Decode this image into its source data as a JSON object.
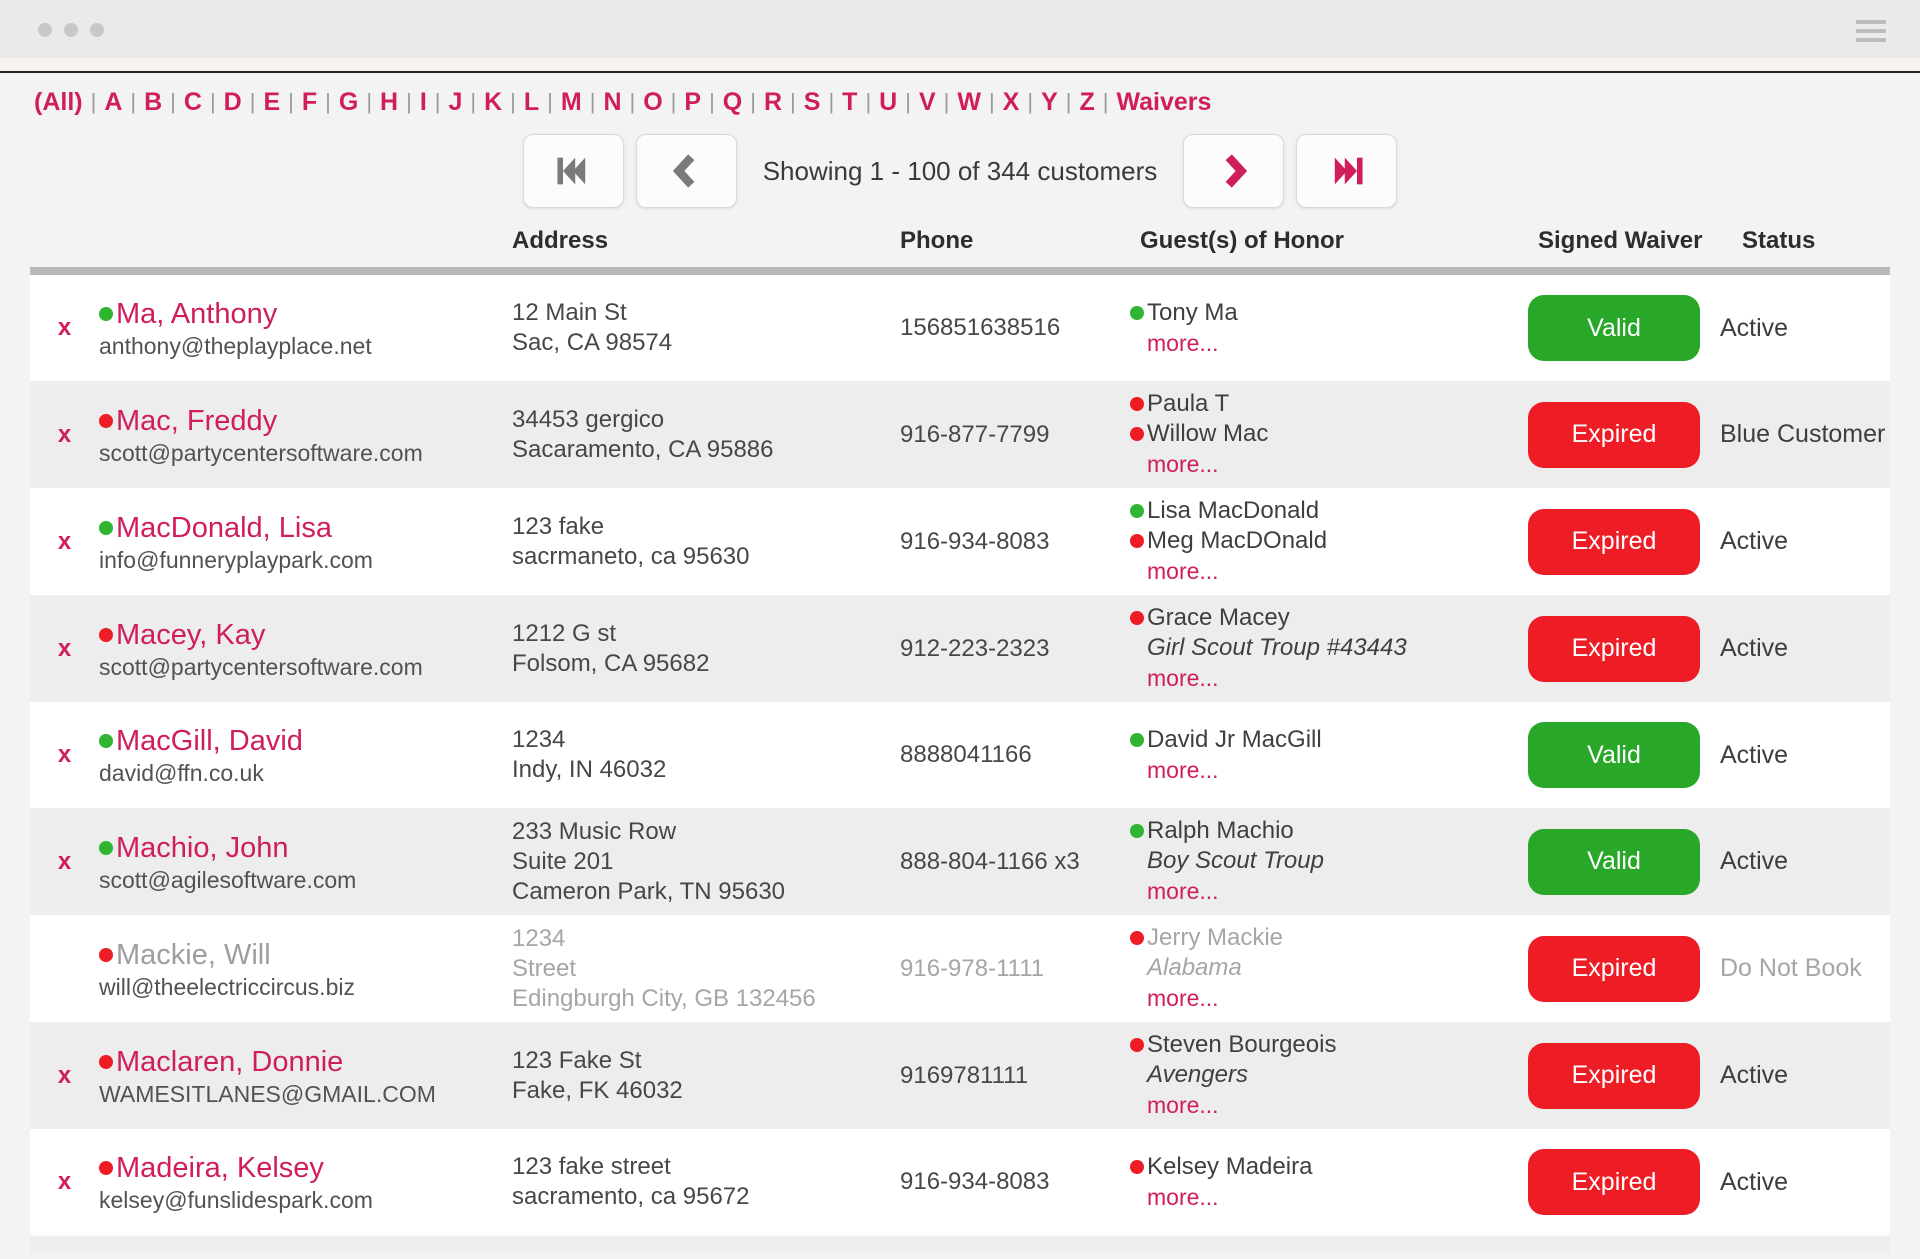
{
  "alphabet_nav": {
    "items": [
      "(All)",
      "A",
      "B",
      "C",
      "D",
      "E",
      "F",
      "G",
      "H",
      "I",
      "J",
      "K",
      "L",
      "M",
      "N",
      "O",
      "P",
      "Q",
      "R",
      "S",
      "T",
      "U",
      "V",
      "W",
      "X",
      "Y",
      "Z",
      "Waivers"
    ]
  },
  "pagination": {
    "summary": "Showing 1 - 100 of 344 customers"
  },
  "table": {
    "headers": {
      "address": "Address",
      "phone": "Phone",
      "guests": "Guest(s) of Honor",
      "waiver": "Signed Waiver",
      "status": "Status"
    },
    "delete_label": "x",
    "more_label": "more...",
    "rows": [
      {
        "name": "Ma, Anthony",
        "dot": "green",
        "email": "anthony@theplayplace.net",
        "address": [
          "12 Main St",
          "Sac, CA 98574"
        ],
        "phone": "156851638516",
        "guests": [
          {
            "name": "Tony Ma",
            "dot": "green"
          }
        ],
        "more": true,
        "waiver": {
          "label": "Valid",
          "color": "green"
        },
        "status": "Active",
        "muted": false,
        "deletable": true
      },
      {
        "name": "Mac, Freddy",
        "dot": "red",
        "email": "scott@partycentersoftware.com",
        "address": [
          "34453 gergico",
          "Sacaramento, CA 95886"
        ],
        "phone": "916-877-7799",
        "guests": [
          {
            "name": "Paula T",
            "dot": "red"
          },
          {
            "name": "Willow Mac",
            "dot": "red"
          }
        ],
        "more": true,
        "waiver": {
          "label": "Expired",
          "color": "red"
        },
        "status": "Blue Customer",
        "muted": false,
        "deletable": true
      },
      {
        "name": "MacDonald, Lisa",
        "dot": "green",
        "email": "info@funneryplaypark.com",
        "address": [
          "123 fake",
          "sacrmaneto, ca 95630"
        ],
        "phone": "916-934-8083",
        "guests": [
          {
            "name": "Lisa MacDonald",
            "dot": "green"
          },
          {
            "name": "Meg MacDOnald",
            "dot": "red"
          }
        ],
        "more": true,
        "waiver": {
          "label": "Expired",
          "color": "red"
        },
        "status": "Active",
        "muted": false,
        "deletable": true
      },
      {
        "name": "Macey, Kay",
        "dot": "red",
        "email": "scott@partycentersoftware.com",
        "address": [
          "1212 G st",
          "Folsom, CA 95682"
        ],
        "phone": "912-223-2323",
        "guests": [
          {
            "name": "Grace Macey",
            "dot": "red"
          },
          {
            "name": "Girl Scout Troup #43443",
            "italic": true
          }
        ],
        "more": true,
        "waiver": {
          "label": "Expired",
          "color": "red"
        },
        "status": "Active",
        "muted": false,
        "deletable": true
      },
      {
        "name": "MacGill, David",
        "dot": "green",
        "email": "david@ffn.co.uk",
        "address": [
          "1234",
          "Indy, IN 46032"
        ],
        "phone": "8888041166",
        "guests": [
          {
            "name": "David Jr MacGill",
            "dot": "green"
          }
        ],
        "more": true,
        "waiver": {
          "label": "Valid",
          "color": "green"
        },
        "status": "Active",
        "muted": false,
        "deletable": true
      },
      {
        "name": "Machio, John",
        "dot": "green",
        "email": "scott@agilesoftware.com",
        "address": [
          "233 Music Row",
          "Suite 201",
          "Cameron Park, TN 95630"
        ],
        "phone": "888-804-1166 x3",
        "guests": [
          {
            "name": "Ralph Machio",
            "dot": "green"
          },
          {
            "name": "Boy Scout Troup",
            "italic": true
          }
        ],
        "more": true,
        "waiver": {
          "label": "Valid",
          "color": "green"
        },
        "status": "Active",
        "muted": false,
        "deletable": true
      },
      {
        "name": "Mackie, Will",
        "dot": "red",
        "email": "will@theelectriccircus.biz",
        "address": [
          "1234",
          "Street",
          "Edingburgh City, GB 132456"
        ],
        "phone": "916-978-1111",
        "guests": [
          {
            "name": "Jerry Mackie",
            "dot": "red"
          },
          {
            "name": "Alabama",
            "italic": true
          }
        ],
        "more": true,
        "waiver": {
          "label": "Expired",
          "color": "red"
        },
        "status": "Do Not Book",
        "muted": true,
        "deletable": false
      },
      {
        "name": "Maclaren, Donnie",
        "dot": "red",
        "email": "WAMESITLANES@GMAIL.COM",
        "address": [
          "123 Fake St",
          "Fake, FK 46032"
        ],
        "phone": "9169781111",
        "guests": [
          {
            "name": "Steven Bourgeois",
            "dot": "red"
          },
          {
            "name": "Avengers",
            "italic": true
          }
        ],
        "more": true,
        "waiver": {
          "label": "Expired",
          "color": "red"
        },
        "status": "Active",
        "muted": false,
        "deletable": true
      },
      {
        "name": "Madeira, Kelsey",
        "dot": "red",
        "email": "kelsey@funslidespark.com",
        "address": [
          "123 fake street",
          "sacramento, ca 95672"
        ],
        "phone": "916-934-8083",
        "guests": [
          {
            "name": "Kelsey Madeira",
            "dot": "red"
          }
        ],
        "more": true,
        "waiver": {
          "label": "Expired",
          "color": "red"
        },
        "status": "Active",
        "muted": false,
        "deletable": true
      }
    ]
  },
  "colors": {
    "brand_pink": "#d01d5c",
    "valid_green": "#28a728",
    "expired_red": "#ee1c25",
    "dot_green": "#2fb52f",
    "dot_red": "#ee1c25",
    "arrow_gray": "#7a7a7a"
  }
}
